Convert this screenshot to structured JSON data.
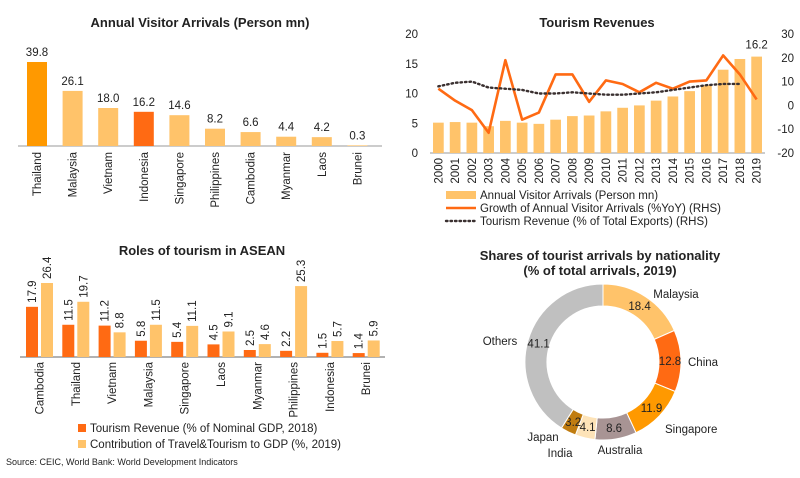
{
  "source": "Source: CEIC, World Bank: World Development Indicators",
  "colors": {
    "light": "#FFC36A",
    "orange": "#FF6A13",
    "amber": "#FF9900",
    "dotted": "#3A3030"
  },
  "chart_data": [
    {
      "type": "bar",
      "title": "Annual Visitor Arrivals (Person mn)",
      "categories": [
        "Thailand",
        "Malaysia",
        "Vietnam",
        "Indonesia",
        "Singapore",
        "Philippines",
        "Cambodia",
        "Myanmar",
        "Laos",
        "Brunei"
      ],
      "values": [
        39.8,
        26.1,
        18.0,
        16.2,
        14.6,
        8.2,
        6.6,
        4.4,
        4.2,
        0.3
      ],
      "value_labels": [
        "39.8",
        "26.1",
        "18.0",
        "16.2",
        "14.6",
        "8.2",
        "6.6",
        "4.4",
        "4.2",
        "0.3"
      ],
      "bar_colors": [
        "#FF9900",
        "#FFC36A",
        "#FFC36A",
        "#FF6A13",
        "#FFC36A",
        "#FFC36A",
        "#FFC36A",
        "#FFC36A",
        "#FFC36A",
        "#FFC36A"
      ],
      "ylim": [
        0,
        42
      ]
    },
    {
      "type": "bar+line",
      "title": "Tourism Revenues",
      "x": [
        "2000",
        "2001",
        "2002",
        "2003",
        "2004",
        "2005",
        "2006",
        "2007",
        "2008",
        "2009",
        "2010",
        "2011",
        "2012",
        "2013",
        "2014",
        "2015",
        "2016",
        "2017",
        "2018",
        "2019"
      ],
      "left_ticks": [
        "0",
        "5",
        "10",
        "15",
        "20"
      ],
      "right_ticks": [
        "-20",
        "-10",
        "0",
        "10",
        "20",
        "30"
      ],
      "ylim_left": [
        0,
        20
      ],
      "ylim_right": [
        -20,
        30
      ],
      "last_label": "16.2",
      "series": [
        {
          "name": "Annual Visitor Arrivals (Person mn)",
          "kind": "bar",
          "axis": "left",
          "color": "#FFC36A",
          "values": [
            5.1,
            5.2,
            5.1,
            4.5,
            5.4,
            5.1,
            4.9,
            5.6,
            6.2,
            6.3,
            7.0,
            7.6,
            8.0,
            8.8,
            9.5,
            10.4,
            11.4,
            14.0,
            15.8,
            16.2
          ]
        },
        {
          "name": "Growth of Annual Visitor Arrivals (%YoY) (RHS)",
          "kind": "line",
          "axis": "right",
          "color": "#FF6A13",
          "values": [
            7,
            2,
            -2,
            -11.5,
            19,
            -6,
            -3,
            13,
            13,
            1.5,
            10.5,
            9,
            5.5,
            9.5,
            7,
            10,
            10.5,
            21,
            13,
            2.5
          ]
        },
        {
          "name": "Tourism Revenue (% of Total Exports)  (RHS)",
          "kind": "dotted",
          "axis": "right",
          "color": "#3A3030",
          "values": [
            8,
            9.5,
            10,
            7.5,
            7,
            6.5,
            5,
            5,
            5.5,
            5,
            4.5,
            4.5,
            5,
            5.5,
            6.5,
            7.5,
            8.5,
            9,
            9,
            null
          ]
        }
      ]
    },
    {
      "type": "bar",
      "title": "Roles of tourism in ASEAN",
      "categories": [
        "Cambodia",
        "Thailand",
        "Vietnam",
        "Malaysia",
        "Singapore",
        "Laos",
        "Myanmar",
        "Philippines",
        "Indonesia",
        "Brunei"
      ],
      "ylim": [
        0,
        28
      ],
      "series": [
        {
          "name": "Tourism Revenue (% of Nominal GDP, 2018)",
          "color": "#FF6A13",
          "values": [
            17.9,
            11.5,
            11.2,
            5.8,
            5.4,
            4.5,
            2.5,
            2.2,
            1.5,
            1.4
          ],
          "labels": [
            "17.9",
            "11.5",
            "11.2",
            "5.8",
            "5.4",
            "4.5",
            "2.5",
            "2.2",
            "1.5",
            "1.4"
          ]
        },
        {
          "name": "Contribution of Travel&Tourism to GDP (%, 2019)",
          "color": "#FFC36A",
          "values": [
            26.4,
            19.7,
            8.8,
            11.5,
            11.1,
            9.1,
            4.6,
            25.3,
            5.7,
            5.9
          ],
          "labels": [
            "26.4",
            "19.7",
            "8.8",
            "11.5",
            "11.1",
            "9.1",
            "4.6",
            "25.3",
            "5.7",
            "5.9"
          ]
        }
      ]
    },
    {
      "type": "pie",
      "title": [
        "Shares of tourist arrivals by nationality",
        "(% of total arrivals, 2019)"
      ],
      "slices": [
        {
          "name": "Malaysia",
          "value": 18.4,
          "label": "18.4",
          "color": "#FFC36A"
        },
        {
          "name": "China",
          "value": 12.8,
          "label": "12.8",
          "color": "#FF6A13"
        },
        {
          "name": "Singapore",
          "value": 11.9,
          "label": "11.9",
          "color": "#FF9900"
        },
        {
          "name": "Australia",
          "value": 8.6,
          "label": "8.6",
          "color": "#A89494"
        },
        {
          "name": "India",
          "value": 4.1,
          "label": "4.1",
          "color": "#FDE3B8"
        },
        {
          "name": "Japan",
          "value": 3.2,
          "label": "3.2",
          "color": "#C07C10"
        },
        {
          "name": "Others",
          "value": 41.1,
          "label": "41.1",
          "color": "#C0C0C0"
        }
      ]
    }
  ]
}
